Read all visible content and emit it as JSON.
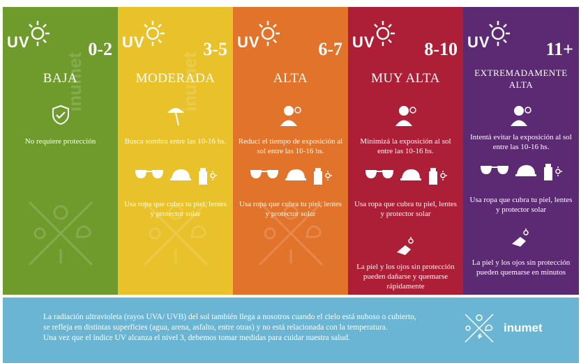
{
  "uv_label": "UV",
  "columns": [
    {
      "color": "#6f9a2c",
      "range": "0-2",
      "level": "BAJA",
      "text1": "No requiere protección"
    },
    {
      "color": "#e9c12a",
      "range": "3-5",
      "level": "MODERADA",
      "text1": "Busca sombra entre las 10-16 hs.",
      "text2": "Usa ropa que cubra tu piel, lentes y protector solar"
    },
    {
      "color": "#e2732b",
      "range": "6-7",
      "level": "ALTA",
      "text1": "Reducí el tiempo de exposición al sol entre las 10-16 hs.",
      "text2": "Usa ropa que cubra tu piel, lentes y protector solar"
    },
    {
      "color": "#ad1f37",
      "range": "8-10",
      "level": "MUY ALTA",
      "text1": "Minimizá la exposición al sol entre las 10-16 hs.",
      "text2": "Usa ropa que cubra tu piel, lentes y protector solar",
      "text3": "La piel y los ojos sin protección pueden dañarse y quemarse rápidamente"
    },
    {
      "color": "#5b2a73",
      "range": "11+",
      "level": "EXTREMADAMENTE ALTA",
      "text1": "Intentá evitar la exposición al sol entre las 10-16 hs.",
      "text2": "Usa ropa que cubra tu piel, lentes y protector solar",
      "text3": "La piel y los ojos sin protección pueden quemarse en minutos"
    }
  ],
  "watermark": "inumet",
  "footer": {
    "line1": "La radiación ultravioleta (rayos UVA/ UVB) del sol también llega a nosotros cuando el cielo está nuboso o cubierto,",
    "line2": "se refleja en distintas superficies (agua, arena, asfalto, entre otras) y no está relacionada con la temperatura.",
    "line3": "Una vez que el índice UV alcanza el nivel 3, debemos tomar medidas para cuidar nuestra salud.",
    "logo_text": "inumet"
  }
}
